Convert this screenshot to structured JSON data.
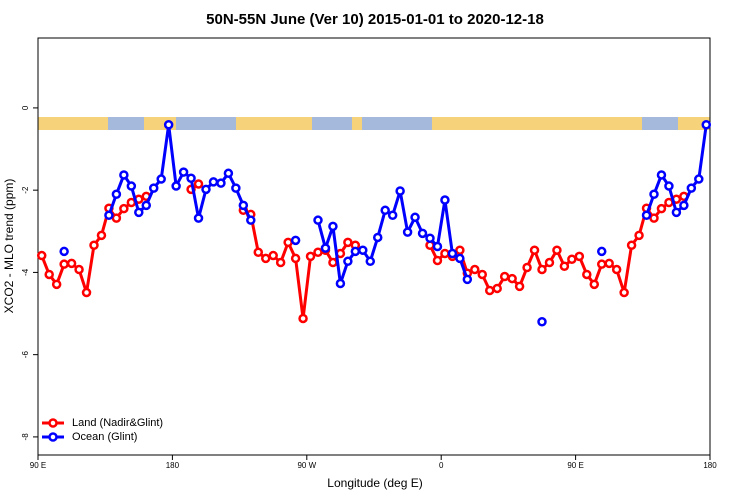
{
  "chart_data": {
    "type": "line",
    "title": "50N-55N June (Ver 10)   2015-01-01 to 2020-12-18",
    "x_label": "Longitude (deg E)",
    "y_label": "XCO2 - MLO trend (ppm)",
    "xlim": [
      90,
      540
    ],
    "ylim": [
      -8.44,
      1.7
    ],
    "xticks": [
      {
        "value": 90,
        "label": "90 E"
      },
      180,
      {
        "value": 270,
        "label": "90 W"
      },
      {
        "value": 360,
        "label": "0"
      },
      {
        "value": 450,
        "label": "90 E"
      },
      {
        "value": 540,
        "label": "180"
      }
    ],
    "yticks": [
      0,
      -2,
      -4,
      -6,
      -8
    ],
    "legend": "bottomleft",
    "x": [
      92.5,
      97.5,
      102.5,
      107.5,
      112.5,
      117.5,
      122.5,
      127.5,
      132.5,
      137.5,
      142.5,
      147.5,
      152.5,
      157.5,
      162.5,
      167.5,
      172.5,
      177.5,
      182.5,
      187.5,
      192.5,
      197.5,
      202.5,
      207.5,
      212.5,
      217.5,
      222.5,
      227.5,
      232.5,
      237.5,
      242.5,
      247.5,
      252.5,
      257.5,
      262.5,
      267.5,
      272.5,
      277.5,
      282.5,
      287.5,
      292.5,
      297.5,
      302.5,
      307.5,
      312.5,
      317.5,
      322.5,
      327.5,
      332.5,
      337.5,
      342.5,
      347.5,
      352.5,
      357.5,
      362.5,
      367.5,
      372.5,
      377.5,
      382.5,
      387.5,
      392.5,
      397.5,
      402.5,
      407.5,
      412.5,
      417.5,
      422.5,
      427.5,
      432.5,
      437.5,
      442.5,
      447.5,
      452.5,
      457.5,
      462.5,
      467.5,
      472.5,
      477.5,
      482.5,
      487.5,
      492.5,
      497.5,
      502.5,
      507.5,
      512.5,
      517.5,
      522.5,
      527.5,
      532.5,
      537.5
    ],
    "series": [
      {
        "name": "Land (Nadir&Glint)",
        "color": "#ff0000",
        "values": [
          -3.59,
          -4.05,
          -4.29,
          -3.8,
          -3.78,
          -3.93,
          -4.49,
          -3.34,
          -3.1,
          -2.44,
          -2.68,
          -2.45,
          -2.3,
          -2.22,
          -2.15,
          null,
          null,
          null,
          null,
          null,
          -1.98,
          -1.85,
          null,
          null,
          null,
          null,
          null,
          -2.49,
          -2.59,
          -3.51,
          -3.66,
          -3.59,
          -3.76,
          -3.27,
          -3.66,
          -5.12,
          -3.61,
          -3.51,
          -3.46,
          -3.76,
          -3.54,
          -3.27,
          -3.34,
          null,
          null,
          null,
          null,
          null,
          null,
          null,
          null,
          null,
          -3.34,
          -3.71,
          -3.54,
          -3.61,
          -3.46,
          -4.02,
          -3.93,
          -4.05,
          -4.44,
          -4.39,
          -4.1,
          -4.15,
          -4.34,
          -3.88,
          -3.46,
          -3.93,
          -3.76,
          -3.46,
          -3.85,
          -3.68,
          -3.61,
          -4.05,
          -4.29,
          -3.8,
          -3.78,
          -3.93,
          -4.49,
          -3.34,
          -3.1,
          -2.44,
          -2.68,
          -2.45,
          -2.3,
          -2.22,
          -2.15,
          null,
          null,
          null
        ]
      },
      {
        "name": "Ocean (Glint)",
        "color": "#0000ff",
        "values": [
          null,
          null,
          null,
          -3.49,
          null,
          null,
          null,
          null,
          null,
          -2.61,
          -2.1,
          -1.63,
          -1.9,
          -2.54,
          -2.37,
          -1.95,
          -1.73,
          -0.41,
          -1.9,
          -1.56,
          -1.71,
          -2.68,
          -1.98,
          -1.8,
          -1.83,
          -1.59,
          -1.95,
          -2.37,
          -2.73,
          null,
          null,
          null,
          null,
          null,
          -3.22,
          null,
          null,
          -2.73,
          -3.41,
          -2.88,
          -4.27,
          -3.73,
          -3.49,
          -3.46,
          -3.73,
          -3.15,
          -2.49,
          -2.61,
          -2.02,
          -3.02,
          -2.66,
          -3.05,
          -3.17,
          -3.37,
          -2.24,
          -3.54,
          -3.66,
          -4.17,
          null,
          null,
          null,
          null,
          null,
          null,
          null,
          null,
          null,
          -5.2,
          null,
          null,
          null,
          null,
          null,
          null,
          null,
          -3.49,
          null,
          null,
          null,
          null,
          null,
          -2.61,
          -2.1,
          -1.63,
          -1.9,
          -2.54,
          -2.37,
          -1.95,
          -1.73,
          -0.41
        ]
      }
    ]
  }
}
